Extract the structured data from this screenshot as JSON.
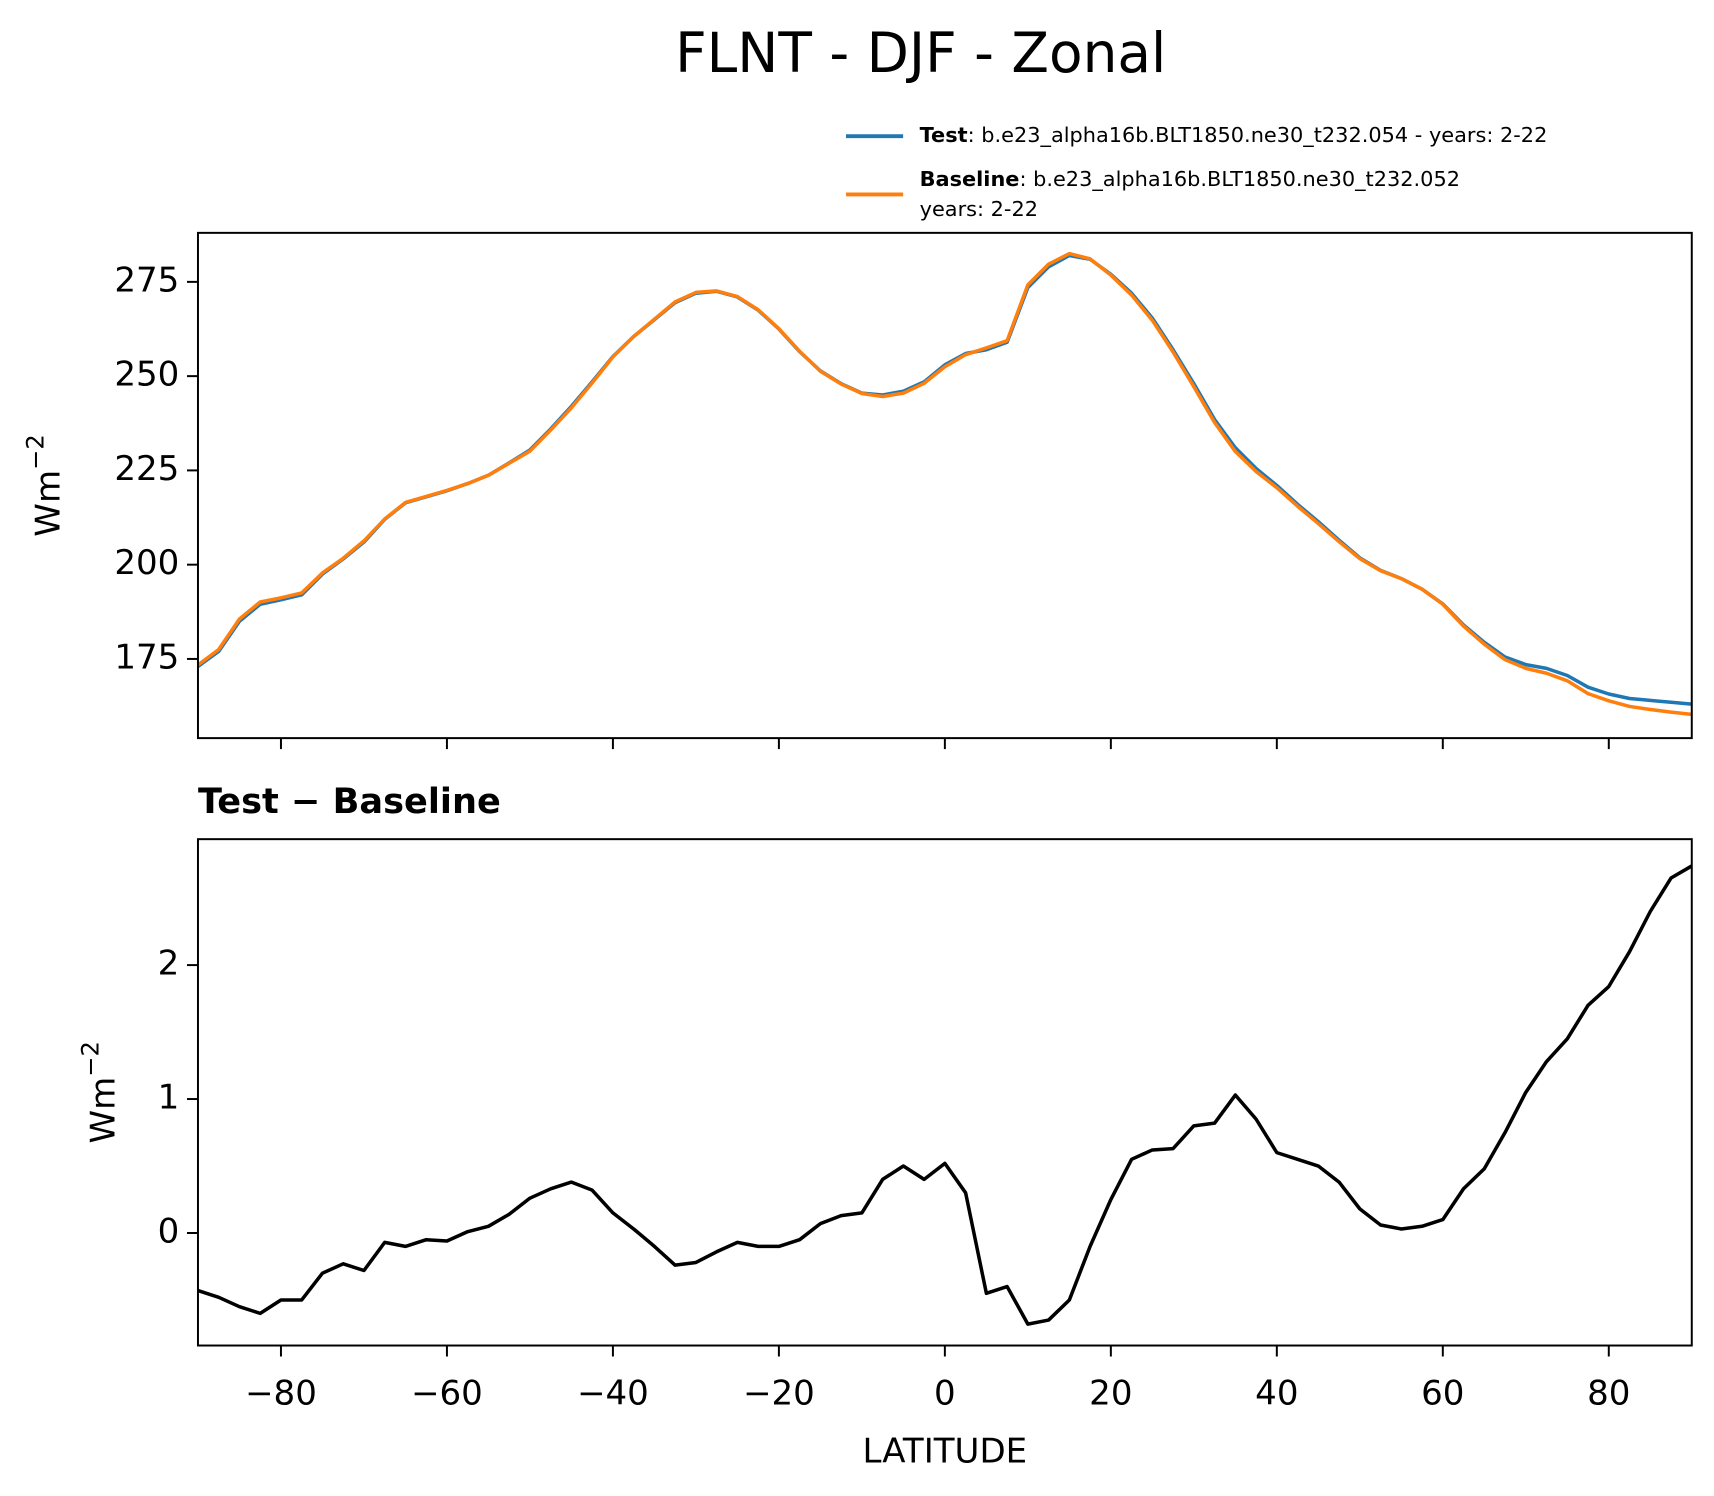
{
  "chart_data": [
    {
      "type": "line",
      "title": "FLNT - DJF - Zonal",
      "ylabel": "Wm",
      "ylabel_superscript": "−2",
      "x": [
        -90,
        -87.5,
        -85,
        -82.5,
        -80,
        -77.5,
        -75,
        -72.5,
        -70,
        -67.5,
        -65,
        -62.5,
        -60,
        -57.5,
        -55,
        -52.5,
        -50,
        -47.5,
        -45,
        -42.5,
        -40,
        -37.5,
        -35,
        -32.5,
        -30,
        -27.5,
        -25,
        -22.5,
        -20,
        -17.5,
        -15,
        -12.5,
        -10,
        -7.5,
        -5,
        -2.5,
        0,
        2.5,
        5,
        7.5,
        10,
        12.5,
        15,
        17.5,
        20,
        22.5,
        25,
        27.5,
        30,
        32.5,
        35,
        37.5,
        40,
        42.5,
        45,
        47.5,
        50,
        52.5,
        55,
        57.5,
        60,
        62.5,
        65,
        67.5,
        70,
        72.5,
        75,
        77.5,
        80,
        82.5,
        85,
        87.5,
        90
      ],
      "series": [
        {
          "name": "Test",
          "description": [
            ": b.e23_alpha16b.BLT1850.ne30_t232.054 - years: 2-22"
          ],
          "color": "#1f77b4",
          "values": [
            173,
            177,
            185,
            189.5,
            190.7,
            192,
            197.5,
            201.5,
            206,
            212,
            216.4,
            218,
            219.6,
            221.5,
            223.7,
            227,
            230.4,
            236,
            242,
            248.5,
            255.2,
            260.5,
            265,
            269.5,
            272,
            272.5,
            271,
            267.5,
            262.5,
            256.5,
            251.4,
            248,
            245.5,
            245,
            246,
            248.5,
            253,
            256,
            257,
            259,
            273.5,
            279,
            282,
            281,
            277,
            272,
            265.4,
            257,
            248,
            238.5,
            231,
            225.5,
            221,
            216,
            211.4,
            206.5,
            201.8,
            198.5,
            196.3,
            193.5,
            189.6,
            184,
            179.4,
            175.5,
            173.5,
            172.5,
            170.6,
            167.5,
            165.7,
            164.5,
            164,
            163.5,
            163
          ]
        },
        {
          "name": "Baseline",
          "description": [
            ": b.e23_alpha16b.BLT1850.ne30_t232.052",
            "years: 2-22"
          ],
          "color": "#ff7f0e",
          "values": [
            173.4,
            177.5,
            185.6,
            190.1,
            191.2,
            192.5,
            197.8,
            201.7,
            206.3,
            212.1,
            216.5,
            218.1,
            219.7,
            221.5,
            223.7,
            226.9,
            230.1,
            235.7,
            241.6,
            248.2,
            255.1,
            260.5,
            265.1,
            269.7,
            272.2,
            272.6,
            271.1,
            267.6,
            262.6,
            256.6,
            251.3,
            247.9,
            245.4,
            244.6,
            245.5,
            248.1,
            252.5,
            255.7,
            257.5,
            259.4,
            274.2,
            279.7,
            282.5,
            281.1,
            276.8,
            271.5,
            264.8,
            256.4,
            247.2,
            237.7,
            230,
            224.7,
            220.4,
            215.5,
            210.9,
            206.1,
            201.6,
            198.4,
            196.3,
            193.5,
            189.5,
            183.7,
            178.9,
            174.8,
            172.5,
            171.2,
            169.2,
            165.8,
            163.9,
            162.4,
            161.6,
            160.9,
            160.3
          ]
        }
      ],
      "xlim": [
        -90,
        90
      ],
      "xticks": [
        -80,
        -60,
        -40,
        -20,
        0,
        20,
        40,
        60,
        80
      ],
      "ylim": [
        154,
        288
      ],
      "yticks": [
        175,
        200,
        225,
        250,
        275
      ]
    },
    {
      "type": "line",
      "title": "Test − Baseline",
      "xlabel": "LATITUDE",
      "ylabel": "Wm",
      "ylabel_superscript": "−2",
      "color": "#000000",
      "x": [
        -90,
        -87.5,
        -85,
        -82.5,
        -80,
        -77.5,
        -75,
        -72.5,
        -70,
        -67.5,
        -65,
        -62.5,
        -60,
        -57.5,
        -55,
        -52.5,
        -50,
        -47.5,
        -45,
        -42.5,
        -40,
        -37.5,
        -35,
        -32.5,
        -30,
        -27.5,
        -25,
        -22.5,
        -20,
        -17.5,
        -15,
        -12.5,
        -10,
        -7.5,
        -5,
        -2.5,
        0,
        2.5,
        5,
        7.5,
        10,
        12.5,
        15,
        17.5,
        20,
        22.5,
        25,
        27.5,
        30,
        32.5,
        35,
        37.5,
        40,
        42.5,
        45,
        47.5,
        50,
        52.5,
        55,
        57.5,
        60,
        62.5,
        65,
        67.5,
        70,
        72.5,
        75,
        77.5,
        80,
        82.5,
        85,
        87.5,
        90
      ],
      "values": [
        -0.43,
        -0.48,
        -0.55,
        -0.6,
        -0.5,
        -0.5,
        -0.3,
        -0.23,
        -0.28,
        -0.07,
        -0.1,
        -0.05,
        -0.06,
        0.01,
        0.05,
        0.14,
        0.26,
        0.33,
        0.38,
        0.32,
        0.15,
        0.03,
        -0.1,
        -0.24,
        -0.22,
        -0.14,
        -0.07,
        -0.1,
        -0.1,
        -0.05,
        0.07,
        0.13,
        0.15,
        0.4,
        0.5,
        0.4,
        0.52,
        0.3,
        -0.45,
        -0.4,
        -0.68,
        -0.65,
        -0.5,
        -0.1,
        0.25,
        0.55,
        0.62,
        0.63,
        0.8,
        0.82,
        1.03,
        0.85,
        0.6,
        0.55,
        0.5,
        0.38,
        0.18,
        0.06,
        0.03,
        0.05,
        0.1,
        0.33,
        0.48,
        0.75,
        1.05,
        1.28,
        1.45,
        1.7,
        1.84,
        2.1,
        2.4,
        2.65,
        2.74
      ],
      "xlim": [
        -90,
        90
      ],
      "xticks": [
        {
          "value": -80,
          "label": "−80"
        },
        {
          "value": -60,
          "label": "−60"
        },
        {
          "value": -40,
          "label": "−40"
        },
        {
          "value": -20,
          "label": "−20"
        },
        0,
        20,
        40,
        60,
        80
      ],
      "ylim": [
        -0.84,
        2.94
      ],
      "yticks": [
        0,
        1,
        2
      ]
    }
  ]
}
